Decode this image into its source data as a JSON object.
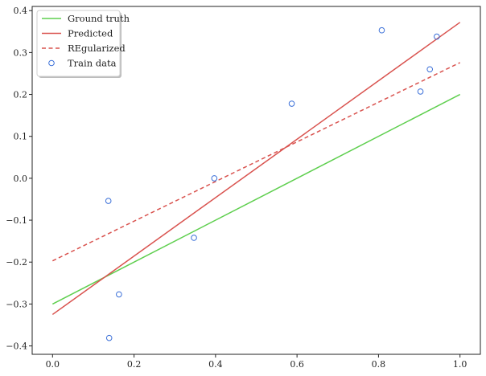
{
  "chart_data": {
    "type": "line",
    "title": "",
    "xlabel": "",
    "ylabel": "",
    "xlim": [
      -0.05,
      1.05
    ],
    "ylim": [
      -0.42,
      0.41
    ],
    "x_ticks": [
      0.0,
      0.2,
      0.4,
      0.6,
      0.8,
      1.0
    ],
    "x_tick_labels": [
      "0.0",
      "0.2",
      "0.4",
      "0.6",
      "0.8",
      "1.0"
    ],
    "y_ticks": [
      -0.4,
      -0.3,
      -0.2,
      -0.1,
      0.0,
      0.1,
      0.2,
      0.3,
      0.4
    ],
    "y_tick_labels": [
      "−0.4",
      "−0.3",
      "−0.2",
      "−0.1",
      "0.0",
      "0.1",
      "0.2",
      "0.3",
      "0.4"
    ],
    "grid": false,
    "legend_position": "top-left",
    "series": [
      {
        "name": "Ground truth",
        "kind": "line",
        "style": "solid",
        "color": "#5fcf4f",
        "x": [
          0.0,
          1.0
        ],
        "y": [
          -0.3,
          0.2
        ]
      },
      {
        "name": "Predicted",
        "kind": "line",
        "style": "solid",
        "color": "#d9534f",
        "x": [
          0.0,
          1.0
        ],
        "y": [
          -0.325,
          0.372
        ]
      },
      {
        "name": "REgularized",
        "kind": "line",
        "style": "dashed",
        "color": "#d9534f",
        "x": [
          0.0,
          1.0
        ],
        "y": [
          -0.197,
          0.276
        ]
      },
      {
        "name": "Train data",
        "kind": "scatter",
        "color": "#3a6fd8",
        "x": [
          0.137,
          0.139,
          0.163,
          0.347,
          0.397,
          0.587,
          0.808,
          0.903,
          0.926,
          0.943
        ],
        "y": [
          -0.054,
          -0.381,
          -0.277,
          -0.142,
          0.0,
          0.178,
          0.353,
          0.207,
          0.26,
          0.338
        ]
      }
    ]
  }
}
